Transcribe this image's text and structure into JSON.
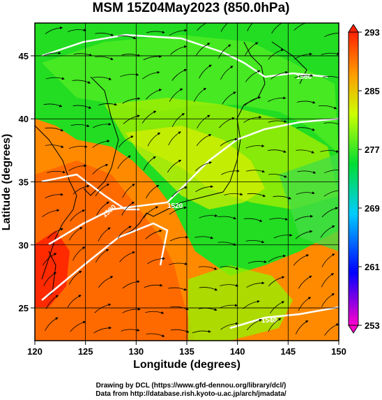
{
  "chart_data": {
    "type": "heatmap",
    "title": "MSM 15Z04May2023 (850.0hPa)",
    "xlabel": "Longitude (degrees)",
    "ylabel": "Latitude  (degrees)",
    "xlim": [
      120,
      150
    ],
    "ylim": [
      22.4,
      47.6
    ],
    "xticks": [
      120,
      125,
      130,
      135,
      140,
      145,
      150
    ],
    "yticks": [
      25,
      30,
      35,
      40,
      45
    ],
    "colorbar": {
      "range": [
        253,
        293
      ],
      "ticks": [
        253,
        261,
        269,
        277,
        285,
        293
      ],
      "colors": [
        "#ff00cc",
        "#0000ff",
        "#00ccff",
        "#00dd33",
        "#ccff00",
        "#ff9900",
        "#ff2200"
      ]
    },
    "contour_labels": [
      "1560",
      "1500",
      "1520",
      "1540"
    ],
    "grid": true
  },
  "credits": {
    "line1": "Drawing by DCL (https://www.gfd-dennou.org/library/dcl/)",
    "line2": "Data from http://database.rish.kyoto-u.ac.jp/arch/jmadata/"
  }
}
